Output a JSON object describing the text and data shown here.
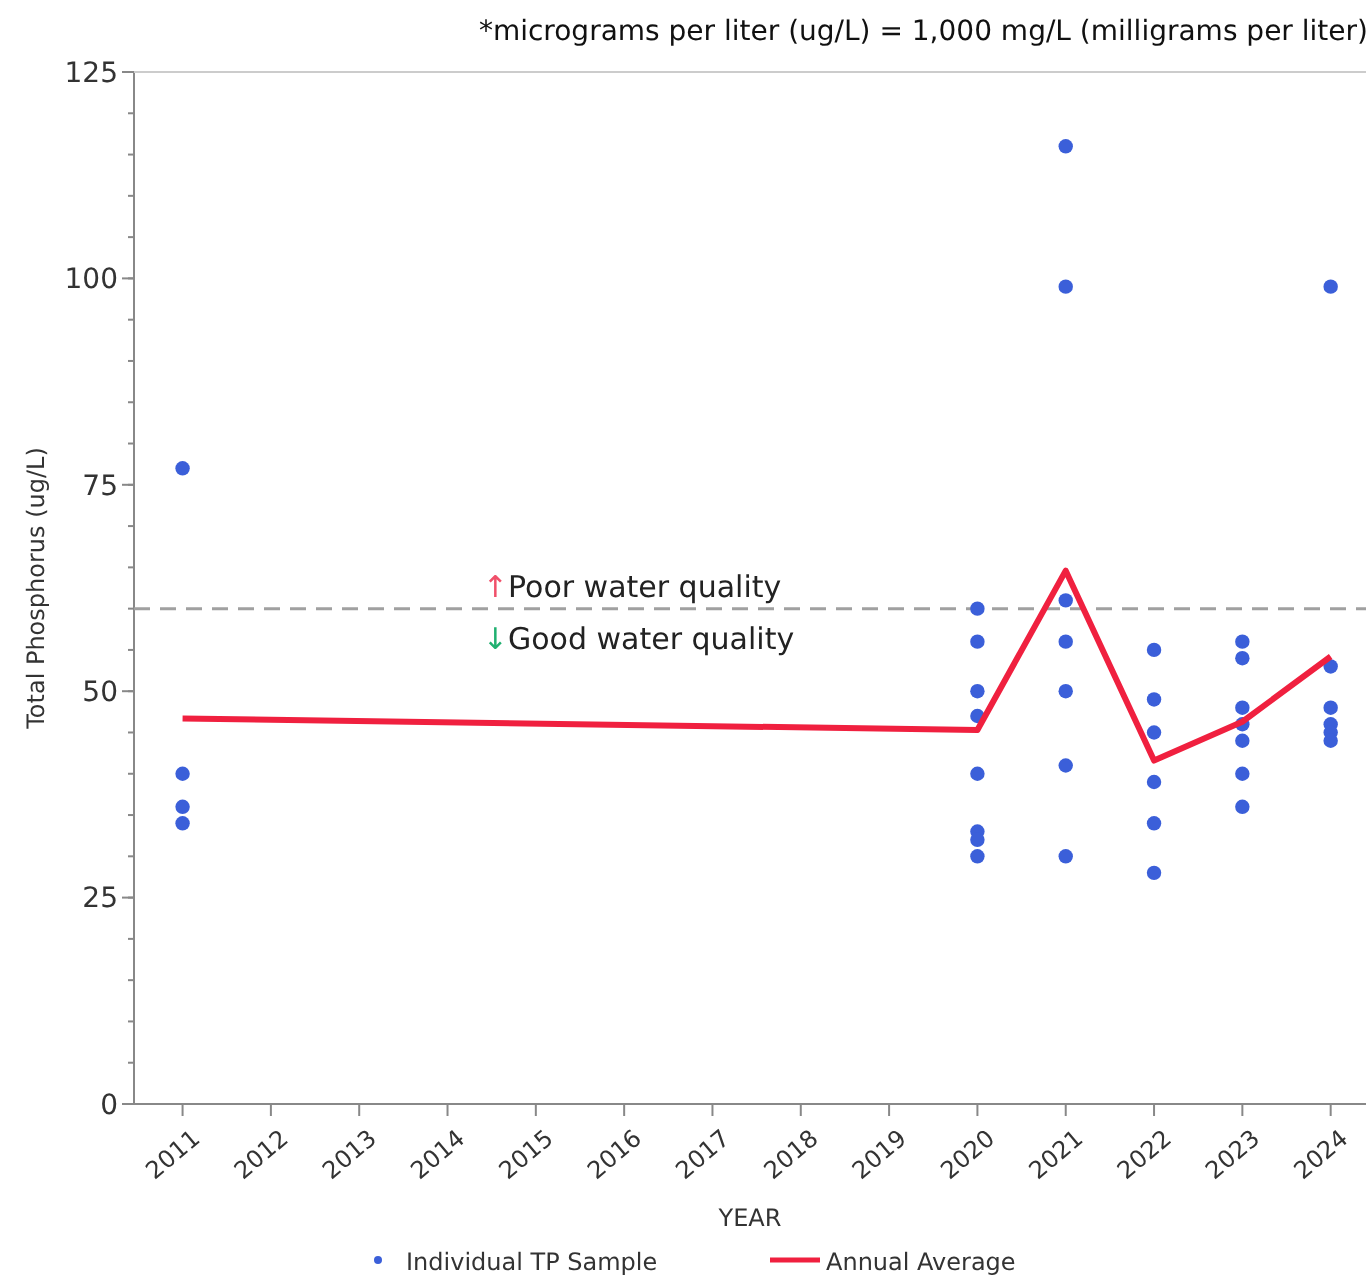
{
  "chart_data": {
    "type": "scatter",
    "xlabel": "YEAR",
    "ylabel": "Total Phosphorus (ug/L)",
    "annotations": [
      "*micrograms per liter (ug/L) = 1,000 mg/L (milligrams per liter)",
      {
        "text": "↑Poor water quality",
        "x": 2014.4,
        "y": 60
      },
      {
        "text": "↓Good water quality",
        "x": 2014.4,
        "y": 60
      }
    ],
    "xlim": [
      2010.45,
      2024.4
    ],
    "xticks": [
      2011,
      2012,
      2013,
      2014,
      2015,
      2016,
      2017,
      2018,
      2019,
      2020,
      2021,
      2022,
      2023,
      2024
    ],
    "ylim": [
      0,
      125
    ],
    "yticks": [
      0,
      25,
      50,
      75,
      100,
      125
    ],
    "ref_lines": [
      {
        "axis": "y",
        "value": 60,
        "color": "#a0a0a0",
        "line_style": "dashed"
      }
    ],
    "legend": "bottom",
    "grid": false,
    "series": [
      {
        "name": "Individual TP Sample",
        "color": "#3b5fd9",
        "marker": "circle",
        "x": [
          2011,
          2011,
          2011,
          2011,
          2020,
          2020,
          2020,
          2020,
          2020,
          2020,
          2020,
          2020,
          2021,
          2021,
          2021,
          2021,
          2021,
          2021,
          2021,
          2022,
          2022,
          2022,
          2022,
          2022,
          2022,
          2023,
          2023,
          2023,
          2023,
          2023,
          2023,
          2023,
          2024,
          2024,
          2024,
          2024,
          2024,
          2024
        ],
        "values": [
          77,
          40,
          36,
          34,
          60,
          56,
          50,
          47,
          40,
          33,
          32,
          30,
          116,
          99,
          61,
          56,
          50,
          41,
          30,
          55,
          49,
          45,
          39,
          34,
          28,
          56,
          54,
          48,
          46,
          44,
          40,
          36,
          99,
          53,
          48,
          46,
          45,
          44
        ]
      },
      {
        "name": "Annual Average",
        "type": "line",
        "color": "#f0203f",
        "marker": "none",
        "line_style": "solid",
        "x": [
          2011,
          2020,
          2021,
          2022,
          2023,
          2024
        ],
        "values": [
          46.7,
          45.3,
          64.6,
          41.6,
          46.3,
          54.2
        ]
      }
    ]
  }
}
